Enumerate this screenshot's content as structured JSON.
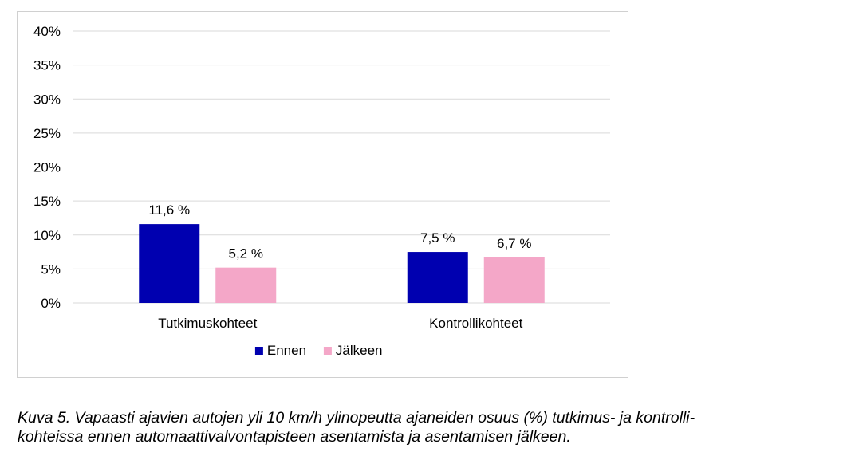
{
  "chart_data": {
    "type": "bar",
    "categories": [
      "Tutkimuskohteet",
      "Kontrollikohteet"
    ],
    "series": [
      {
        "name": "Ennen",
        "color": "#0000b0",
        "values": [
          11.6,
          7.5
        ],
        "labels": [
          "11,6 %",
          "7,5 %"
        ]
      },
      {
        "name": "Jälkeen",
        "color": "#f4a7c8",
        "values": [
          5.2,
          6.7
        ],
        "labels": [
          "5,2 %",
          "6,7 %"
        ]
      }
    ],
    "ylim": [
      0,
      40
    ],
    "yticks": [
      0,
      5,
      10,
      15,
      20,
      25,
      30,
      35,
      40
    ],
    "ytick_labels": [
      "0%",
      "5%",
      "10%",
      "15%",
      "20%",
      "25%",
      "30%",
      "35%",
      "40%"
    ],
    "grid": true,
    "gridline_color": "#d9d9d9",
    "legend": "bottom"
  },
  "caption": {
    "line1": "Kuva 5. Vapaasti ajavien autojen yli 10 km/h ylinopeutta ajaneiden osuus (%) tutkimus- ja kontrolli-",
    "line2": "kohteissa ennen automaattivalvontapisteen asentamista ja asentamisen jälkeen."
  }
}
